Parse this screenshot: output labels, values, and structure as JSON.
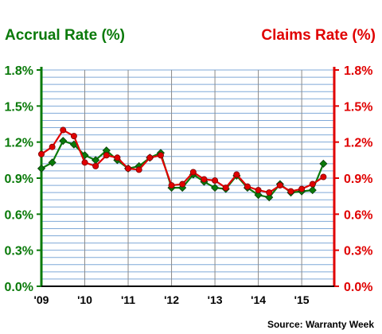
{
  "chart_data": {
    "type": "line",
    "left_axis_title": "Accrual Rate (%)",
    "right_axis_title": "Claims Rate (%)",
    "source": "Source: Warranty Week",
    "y_ticks": [
      "0.0%",
      "0.3%",
      "0.6%",
      "0.9%",
      "1.2%",
      "1.5%",
      "1.8%"
    ],
    "ylim": [
      0,
      1.8
    ],
    "x_ticks": [
      "'09",
      "'10",
      "'11",
      "'12",
      "'13",
      "'14",
      "'15"
    ],
    "xlim": [
      2009,
      2015.75
    ],
    "grid": true,
    "colors": {
      "accrual": "#0a7a0a",
      "claims": "#e00000",
      "grid": "#7fa9d8",
      "axis_text": "#000000"
    },
    "series": [
      {
        "key": "accrual",
        "marker": "diamond",
        "x": [
          2009.0,
          2009.25,
          2009.5,
          2009.75,
          2010.0,
          2010.25,
          2010.5,
          2010.75,
          2011.0,
          2011.25,
          2011.5,
          2011.75,
          2012.0,
          2012.25,
          2012.5,
          2012.75,
          2013.0,
          2013.25,
          2013.5,
          2013.75,
          2014.0,
          2014.25,
          2014.5,
          2014.75,
          2015.0,
          2015.25,
          2015.5
        ],
        "values": [
          0.98,
          1.03,
          1.21,
          1.18,
          1.09,
          1.05,
          1.13,
          1.05,
          0.98,
          1.0,
          1.07,
          1.11,
          0.82,
          0.82,
          0.93,
          0.87,
          0.82,
          0.81,
          0.92,
          0.82,
          0.76,
          0.74,
          0.85,
          0.78,
          0.79,
          0.8,
          1.02
        ]
      },
      {
        "key": "claims",
        "marker": "circle",
        "x": [
          2009.0,
          2009.25,
          2009.5,
          2009.75,
          2010.0,
          2010.25,
          2010.5,
          2010.75,
          2011.0,
          2011.25,
          2011.5,
          2011.75,
          2012.0,
          2012.25,
          2012.5,
          2012.75,
          2013.0,
          2013.25,
          2013.5,
          2013.75,
          2014.0,
          2014.25,
          2014.5,
          2014.75,
          2015.0,
          2015.25,
          2015.5
        ],
        "values": [
          1.1,
          1.16,
          1.3,
          1.25,
          1.03,
          1.0,
          1.09,
          1.07,
          0.98,
          0.97,
          1.07,
          1.09,
          0.84,
          0.85,
          0.95,
          0.89,
          0.88,
          0.82,
          0.93,
          0.83,
          0.8,
          0.78,
          0.84,
          0.79,
          0.81,
          0.85,
          0.91
        ]
      }
    ]
  }
}
